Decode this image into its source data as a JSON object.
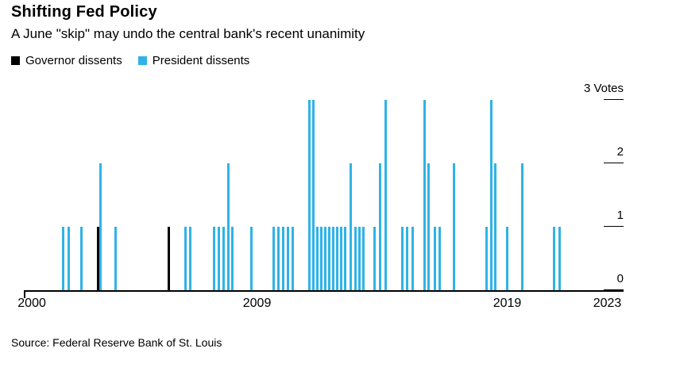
{
  "header": {
    "title": "Shifting Fed Policy",
    "subtitle": "A June \"skip\" may undo the central bank's recent unanimity"
  },
  "legend": [
    {
      "key": "governor",
      "label": "Governor dissents",
      "color": "#000000"
    },
    {
      "key": "president",
      "label": "President dissents",
      "color": "#2fb3e6"
    }
  ],
  "source": "Source: Federal Reserve Bank of St. Louis",
  "chart_data": {
    "type": "bar",
    "title": "Shifting Fed Policy",
    "subtitle": "A June \"skip\" may undo the central bank's recent unanimity",
    "ylabel": "Votes",
    "ylim": [
      0,
      3
    ],
    "yticks": [
      {
        "value": 3,
        "label": "3 Votes"
      },
      {
        "value": 2,
        "label": "2"
      },
      {
        "value": 1,
        "label": "1"
      },
      {
        "value": 0,
        "label": "0"
      }
    ],
    "xlim": [
      1999.68,
      2023.65
    ],
    "xticks": [
      2000,
      2009,
      2019,
      2023
    ],
    "grid": false,
    "legend_position": "top-left",
    "series_colors": {
      "governor": "#000000",
      "president": "#2fb3e6"
    },
    "bars": [
      {
        "year": 2001.21,
        "votes": 1,
        "type": "president"
      },
      {
        "year": 2001.43,
        "votes": 1,
        "type": "president"
      },
      {
        "year": 2001.94,
        "votes": 1,
        "type": "president"
      },
      {
        "year": 2002.6,
        "votes": 1,
        "type": "governor"
      },
      {
        "year": 2002.7,
        "votes": 2,
        "type": "president"
      },
      {
        "year": 2003.3,
        "votes": 1,
        "type": "president"
      },
      {
        "year": 2005.43,
        "votes": 1,
        "type": "governor"
      },
      {
        "year": 2006.1,
        "votes": 1,
        "type": "president"
      },
      {
        "year": 2006.29,
        "votes": 1,
        "type": "president"
      },
      {
        "year": 2007.24,
        "votes": 1,
        "type": "president"
      },
      {
        "year": 2007.43,
        "votes": 1,
        "type": "president"
      },
      {
        "year": 2007.62,
        "votes": 1,
        "type": "president"
      },
      {
        "year": 2007.81,
        "votes": 2,
        "type": "president"
      },
      {
        "year": 2007.97,
        "votes": 1,
        "type": "president"
      },
      {
        "year": 2008.73,
        "votes": 1,
        "type": "president"
      },
      {
        "year": 2009.62,
        "votes": 1,
        "type": "president"
      },
      {
        "year": 2009.81,
        "votes": 1,
        "type": "president"
      },
      {
        "year": 2010.0,
        "votes": 1,
        "type": "president"
      },
      {
        "year": 2010.19,
        "votes": 1,
        "type": "president"
      },
      {
        "year": 2010.38,
        "votes": 1,
        "type": "president"
      },
      {
        "year": 2011.05,
        "votes": 3,
        "type": "president"
      },
      {
        "year": 2011.21,
        "votes": 3,
        "type": "president"
      },
      {
        "year": 2011.37,
        "votes": 1,
        "type": "president"
      },
      {
        "year": 2011.52,
        "votes": 1,
        "type": "president"
      },
      {
        "year": 2011.68,
        "votes": 1,
        "type": "president"
      },
      {
        "year": 2011.84,
        "votes": 1,
        "type": "president"
      },
      {
        "year": 2012.0,
        "votes": 1,
        "type": "president"
      },
      {
        "year": 2012.16,
        "votes": 1,
        "type": "president"
      },
      {
        "year": 2012.32,
        "votes": 1,
        "type": "president"
      },
      {
        "year": 2012.48,
        "votes": 1,
        "type": "president"
      },
      {
        "year": 2012.7,
        "votes": 2,
        "type": "president"
      },
      {
        "year": 2012.89,
        "votes": 1,
        "type": "president"
      },
      {
        "year": 2013.05,
        "votes": 1,
        "type": "president"
      },
      {
        "year": 2013.21,
        "votes": 1,
        "type": "president"
      },
      {
        "year": 2013.65,
        "votes": 1,
        "type": "president"
      },
      {
        "year": 2013.87,
        "votes": 2,
        "type": "president"
      },
      {
        "year": 2014.1,
        "votes": 3,
        "type": "president"
      },
      {
        "year": 2014.76,
        "votes": 1,
        "type": "president"
      },
      {
        "year": 2014.95,
        "votes": 1,
        "type": "president"
      },
      {
        "year": 2015.17,
        "votes": 1,
        "type": "president"
      },
      {
        "year": 2015.65,
        "votes": 3,
        "type": "president"
      },
      {
        "year": 2015.81,
        "votes": 2,
        "type": "president"
      },
      {
        "year": 2016.06,
        "votes": 1,
        "type": "president"
      },
      {
        "year": 2016.25,
        "votes": 1,
        "type": "president"
      },
      {
        "year": 2016.83,
        "votes": 2,
        "type": "president"
      },
      {
        "year": 2018.13,
        "votes": 1,
        "type": "president"
      },
      {
        "year": 2018.32,
        "votes": 3,
        "type": "president"
      },
      {
        "year": 2018.48,
        "votes": 2,
        "type": "president"
      },
      {
        "year": 2018.95,
        "votes": 1,
        "type": "president"
      },
      {
        "year": 2019.56,
        "votes": 2,
        "type": "president"
      },
      {
        "year": 2020.83,
        "votes": 1,
        "type": "president"
      },
      {
        "year": 2021.05,
        "votes": 1,
        "type": "president"
      }
    ]
  }
}
